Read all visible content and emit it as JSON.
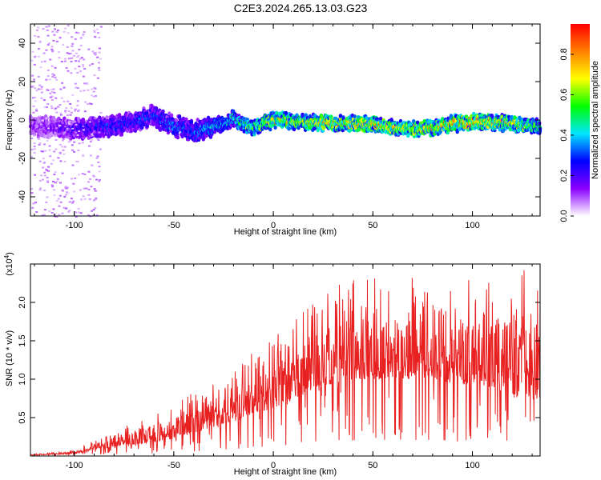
{
  "title": "C2E3.2024.265.13.03.G23",
  "charts": [
    {
      "chart_data": {
        "type": "heatmap",
        "xlabel": "Height of straight line (km)",
        "ylabel": "Frequency (Hz)",
        "xlim": [
          -122,
          134
        ],
        "ylim": [
          -50,
          50
        ],
        "x_ticks": [
          -100,
          -50,
          0,
          50,
          100
        ],
        "y_ticks": [
          -40,
          -20,
          0,
          20,
          40
        ],
        "colorbar": {
          "label": "Normalized spectral amplitude",
          "range": [
            0,
            0.95
          ],
          "ticks": [
            "0.0",
            "0.2",
            "0.4",
            "0.6",
            "0.8"
          ],
          "colormap": [
            "#ffffff",
            "#8a00ff",
            "#0000ff",
            "#00e5ff",
            "#00ff00",
            "#ffff00",
            "#ff8000",
            "#ff0000"
          ]
        },
        "ridge": {
          "description_free": true,
          "x": [
            -122,
            -110,
            -100,
            -90,
            -80,
            -70,
            -65,
            -60,
            -55,
            -50,
            -45,
            -40,
            -35,
            -30,
            -25,
            -20,
            -15,
            -10,
            -5,
            0,
            10,
            20,
            30,
            40,
            50,
            60,
            70,
            80,
            90,
            100,
            110,
            120,
            134
          ],
          "freq": [
            -3,
            -4,
            -5,
            -4,
            -3,
            -1,
            1,
            2,
            -1,
            -3,
            -4,
            -6,
            -5,
            -3,
            -2,
            1,
            -2,
            -4,
            -2,
            0,
            -1,
            -1,
            -2,
            -2,
            -2,
            -4,
            -5,
            -4,
            -2,
            -1,
            -1,
            -2,
            -4
          ],
          "amplitude": [
            0.15,
            0.2,
            0.25,
            0.3,
            0.32,
            0.3,
            0.35,
            0.3,
            0.35,
            0.4,
            0.35,
            0.38,
            0.4,
            0.45,
            0.45,
            0.5,
            0.6,
            0.65,
            0.7,
            0.8,
            0.75,
            0.8,
            0.85,
            0.8,
            0.85,
            0.8,
            0.75,
            0.8,
            0.85,
            0.9,
            0.8,
            0.75,
            0.6
          ]
        }
      }
    },
    {
      "chart_data": {
        "type": "line",
        "xlabel": "Height of straight line (km)",
        "ylabel": "SNR (10 * v/v)",
        "exponent_label": "(x10",
        "exponent_power": "4",
        "exponent_close": ")",
        "xlim": [
          -122,
          134
        ],
        "ylim": [
          0,
          2.5
        ],
        "x_ticks": [
          -100,
          -50,
          0,
          50,
          100
        ],
        "y_ticks": [
          0.5,
          1.0,
          1.5,
          2.0
        ],
        "color": "#e82020",
        "envelope": {
          "x": [
            -122,
            -100,
            -90,
            -80,
            -70,
            -60,
            -50,
            -40,
            -30,
            -20,
            -10,
            0,
            10,
            20,
            30,
            40,
            50,
            60,
            70,
            80,
            90,
            100,
            110,
            120,
            134
          ],
          "base": [
            0.01,
            0.03,
            0.08,
            0.12,
            0.15,
            0.18,
            0.22,
            0.3,
            0.38,
            0.45,
            0.55,
            0.62,
            0.75,
            0.85,
            0.95,
            1.0,
            1.0,
            1.02,
            1.0,
            0.98,
            0.95,
            0.92,
            0.88,
            0.8,
            0.7
          ],
          "peak": [
            0.02,
            0.08,
            0.2,
            0.3,
            0.45,
            0.55,
            0.7,
            0.85,
            1.0,
            1.15,
            1.35,
            1.55,
            1.75,
            2.0,
            2.2,
            2.3,
            2.35,
            2.3,
            2.35,
            2.3,
            2.25,
            2.3,
            2.4,
            2.4,
            2.45
          ]
        }
      }
    }
  ]
}
